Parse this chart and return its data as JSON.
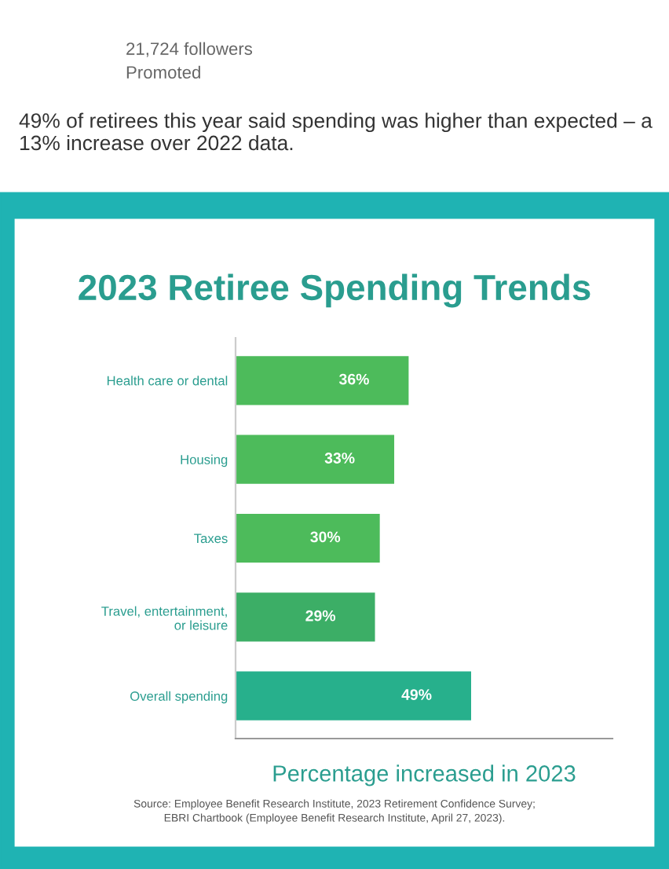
{
  "chart_data": {
    "type": "bar",
    "orientation": "horizontal",
    "title": "2023 Retiree Spending Trends",
    "categories": [
      "Health care or dental",
      "Housing",
      "Taxes",
      "Travel, entertainment,\nor leisure",
      "Overall spending"
    ],
    "values": [
      36,
      33,
      30,
      29,
      49
    ],
    "colors": [
      "#4dbb5b",
      "#4dbb5b",
      "#4dbb5b",
      "#3cae66",
      "#27b08c"
    ],
    "value_labels": [
      "36%",
      "33%",
      "30%",
      "29%",
      "49%"
    ],
    "xlabel": "Percentage increased in 2023",
    "annotations": [
      "21,724 followers",
      "Promoted",
      "49% of retirees this year said spending was higher than expected – a 13% increase over 2022 data.",
      "Source: Employee Benefit Research Institute, 2023 Retirement Confidence Survey;",
      "EBRI Chartbook (Employee Benefit Research Institute, April 27, 2023)."
    ]
  }
}
